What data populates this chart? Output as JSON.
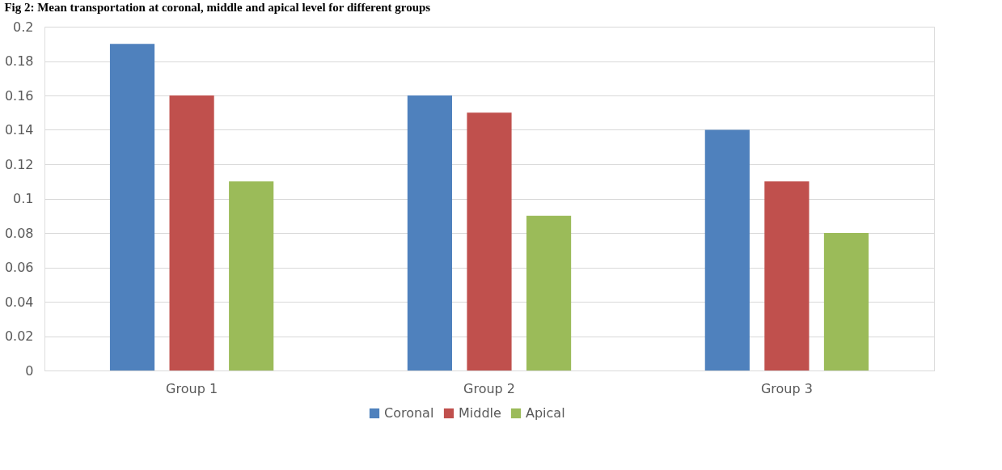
{
  "chart_data": {
    "type": "bar",
    "title": "Fig 2: Mean transportation at coronal, middle and apical level for different groups",
    "categories": [
      "Group 1",
      "Group 2",
      "Group 3"
    ],
    "series": [
      {
        "name": "Coronal",
        "color": "#4f81bd",
        "values": [
          0.19,
          0.16,
          0.14
        ]
      },
      {
        "name": "Middle",
        "color": "#c0504d",
        "values": [
          0.16,
          0.15,
          0.11
        ]
      },
      {
        "name": "Apical",
        "color": "#9bbb59",
        "values": [
          0.11,
          0.09,
          0.08
        ]
      }
    ],
    "ylim": [
      0,
      0.2
    ],
    "yticks": [
      0,
      0.02,
      0.04,
      0.06,
      0.08,
      0.1,
      0.12,
      0.14,
      0.16,
      0.18,
      0.2
    ],
    "grid": "y",
    "legend": "bottom"
  }
}
